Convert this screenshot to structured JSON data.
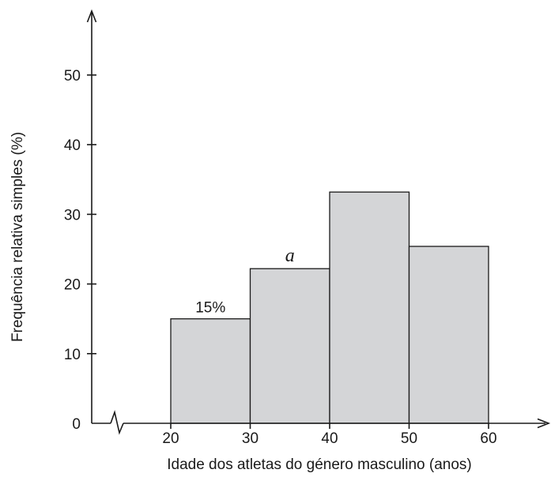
{
  "chart_data": {
    "type": "bar",
    "xlabel": "Idade dos atletas do género masculino (anos)",
    "ylabel": "Frequência relativa simples (%)",
    "x_ticks": [
      "20",
      "30",
      "40",
      "50",
      "60"
    ],
    "y_ticks": [
      "0",
      "10",
      "20",
      "30",
      "40",
      "50"
    ],
    "ylim": [
      0,
      55
    ],
    "xlim": [
      20,
      60
    ],
    "axis_break": true,
    "grid": false,
    "bars": [
      {
        "from": 20,
        "to": 30,
        "value": 15,
        "label": "15%"
      },
      {
        "from": 30,
        "to": 40,
        "value": 22.2,
        "label": "a"
      },
      {
        "from": 40,
        "to": 50,
        "value": 33.2,
        "label": ""
      },
      {
        "from": 50,
        "to": 60,
        "value": 25.4,
        "label": ""
      }
    ],
    "colors": {
      "bar_fill": "#d4d5d7",
      "stroke": "#1a1a1a"
    }
  }
}
